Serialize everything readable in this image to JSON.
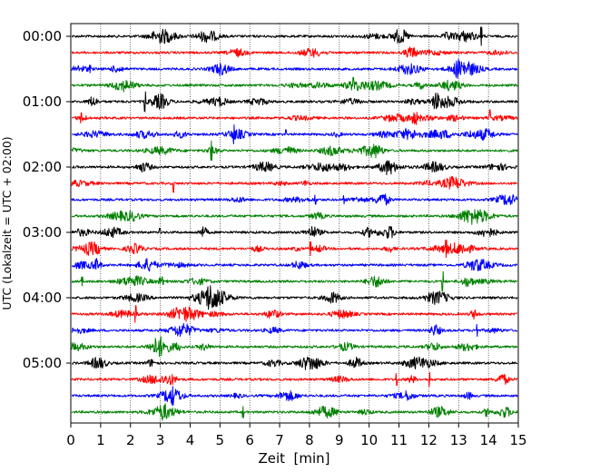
{
  "chart_data": {
    "type": "line",
    "title": "",
    "xlabel": "Zeit  [min]",
    "ylabel": "UTC (Lokalzeit = UTC + 02:00)",
    "xlim": [
      0,
      15
    ],
    "x_ticks": [
      "0",
      "1",
      "2",
      "3",
      "4",
      "5",
      "6",
      "7",
      "8",
      "9",
      "10",
      "11",
      "12",
      "13",
      "14",
      "15"
    ],
    "y_ticks": [
      {
        "label": "00:00",
        "trace": 0
      },
      {
        "label": "01:00",
        "trace": 4
      },
      {
        "label": "02:00",
        "trace": 8
      },
      {
        "label": "03:00",
        "trace": 12
      },
      {
        "label": "04:00",
        "trace": 16
      },
      {
        "label": "05:00",
        "trace": 20
      }
    ],
    "grid": "vertical-dotted",
    "colors": [
      "#000000",
      "#ff0000",
      "#0000ff",
      "#008000"
    ],
    "trace_count": 24,
    "trace_minutes": 15
  }
}
